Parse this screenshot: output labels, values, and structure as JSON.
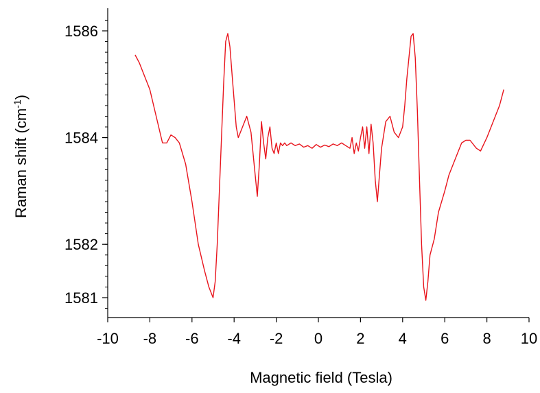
{
  "chart_data": {
    "type": "line",
    "title": "",
    "xlabel": "Magnetic field  (Tesla)",
    "ylabel_main": "Raman shift (cm",
    "ylabel_sup": "-1",
    "ylabel_close": ")",
    "xlim": [
      -10,
      10
    ],
    "ylim": [
      1580.8,
      1586.5
    ],
    "x_ticks": [
      -10,
      -8,
      -6,
      -4,
      -2,
      0,
      2,
      4,
      6,
      8,
      10
    ],
    "x_tick_labels": [
      "-10",
      "-8",
      "-6",
      "-4",
      "-2",
      "0",
      "2",
      "4",
      "6",
      "8",
      "10"
    ],
    "y_ticks_labeled": [
      1581,
      1582,
      1584,
      1586
    ],
    "y_tick_labels": [
      "1581",
      "1582",
      "1584",
      "1586"
    ],
    "line_color": "#e8141c",
    "series": [
      {
        "x": [
          -8.7,
          -8.5,
          -8.3,
          -8.0,
          -7.7,
          -7.4,
          -7.2,
          -7.0,
          -6.8,
          -6.6,
          -6.3,
          -6.0,
          -5.7,
          -5.4,
          -5.2,
          -5.0,
          -4.9,
          -4.8,
          -4.7,
          -4.6,
          -4.5,
          -4.4,
          -4.3,
          -4.2,
          -4.1,
          -4.0,
          -3.9,
          -3.8,
          -3.6,
          -3.4,
          -3.2,
          -3.0,
          -2.9,
          -2.8,
          -2.7,
          -2.6,
          -2.5,
          -2.4,
          -2.3,
          -2.2,
          -2.1,
          -2.0,
          -1.9,
          -1.8,
          -1.7,
          -1.6,
          -1.5,
          -1.3,
          -1.1,
          -0.9,
          -0.7,
          -0.5,
          -0.3,
          -0.1,
          0.1,
          0.3,
          0.5,
          0.7,
          0.9,
          1.1,
          1.3,
          1.5,
          1.6,
          1.7,
          1.8,
          1.9,
          2.0,
          2.1,
          2.2,
          2.3,
          2.4,
          2.5,
          2.6,
          2.7,
          2.8,
          2.9,
          3.0,
          3.2,
          3.4,
          3.6,
          3.8,
          4.0,
          4.1,
          4.2,
          4.3,
          4.4,
          4.5,
          4.6,
          4.7,
          4.8,
          4.9,
          5.0,
          5.1,
          5.2,
          5.3,
          5.5,
          5.7,
          6.0,
          6.2,
          6.5,
          6.8,
          7.0,
          7.2,
          7.5,
          7.7,
          8.0,
          8.3,
          8.6,
          8.8
        ],
        "y": [
          1585.55,
          1585.4,
          1585.2,
          1584.9,
          1584.4,
          1583.9,
          1583.9,
          1584.05,
          1584.0,
          1583.9,
          1583.5,
          1582.8,
          1582.0,
          1581.5,
          1581.2,
          1581.0,
          1581.3,
          1582.0,
          1583.0,
          1584.0,
          1585.0,
          1585.8,
          1585.95,
          1585.7,
          1585.2,
          1584.7,
          1584.2,
          1584.0,
          1584.2,
          1584.4,
          1584.1,
          1583.3,
          1582.9,
          1583.5,
          1584.3,
          1583.9,
          1583.6,
          1584.0,
          1584.2,
          1583.8,
          1583.7,
          1583.9,
          1583.7,
          1583.9,
          1583.85,
          1583.9,
          1583.85,
          1583.9,
          1583.85,
          1583.88,
          1583.82,
          1583.85,
          1583.8,
          1583.87,
          1583.82,
          1583.86,
          1583.83,
          1583.88,
          1583.85,
          1583.9,
          1583.85,
          1583.8,
          1584.0,
          1583.7,
          1583.9,
          1583.75,
          1584.0,
          1584.2,
          1583.8,
          1584.2,
          1583.7,
          1584.25,
          1583.9,
          1583.2,
          1582.8,
          1583.3,
          1583.8,
          1584.3,
          1584.4,
          1584.1,
          1584.0,
          1584.2,
          1584.6,
          1585.1,
          1585.5,
          1585.9,
          1585.95,
          1585.5,
          1584.5,
          1583.2,
          1582.0,
          1581.2,
          1580.95,
          1581.3,
          1581.8,
          1582.1,
          1582.6,
          1583.0,
          1583.3,
          1583.6,
          1583.9,
          1583.95,
          1583.95,
          1583.8,
          1583.75,
          1584.0,
          1584.3,
          1584.6,
          1584.9
        ]
      }
    ]
  }
}
